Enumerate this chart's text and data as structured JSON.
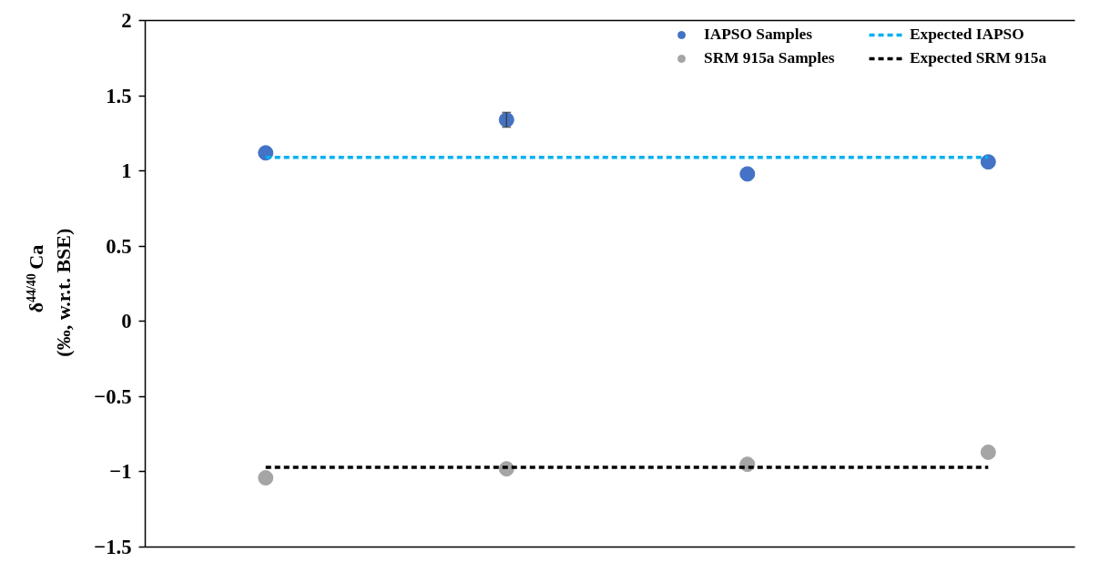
{
  "chart_data": {
    "type": "scatter",
    "ylabel": "δ$^{44/40}$Ca\n(‰, w.r.t. BSE)",
    "categories": [
      null,
      null,
      null,
      null
    ],
    "ylim": [
      -1.5,
      2
    ],
    "yticks": [
      -1.5,
      -1,
      -0.5,
      0,
      0.5,
      1,
      1.5,
      2
    ],
    "grid": false,
    "legend": "top right",
    "tick_labels": "y",
    "series": [
      {
        "name": "IAPSO Samples",
        "marker": "circle",
        "color": "#4472c4",
        "values": [
          1.12,
          1.34,
          0.98,
          1.06
        ],
        "errors": [
          null,
          0.05,
          null,
          null
        ]
      },
      {
        "name": "SRM 915a Samples",
        "marker": "circle",
        "color": "#a5a5a5",
        "values": [
          -1.04,
          -0.98,
          -0.95,
          -0.87
        ]
      },
      {
        "name": "Expected IAPSO",
        "type": "line",
        "line_style": "dashed",
        "color": "#00b0f0",
        "values": [
          1.09,
          1.09,
          1.09,
          1.09
        ]
      },
      {
        "name": "Expected SRM 915a",
        "type": "line",
        "line_style": "dashed",
        "color": "#000000",
        "values": [
          -0.97,
          -0.97,
          -0.97,
          -0.97
        ]
      }
    ]
  }
}
